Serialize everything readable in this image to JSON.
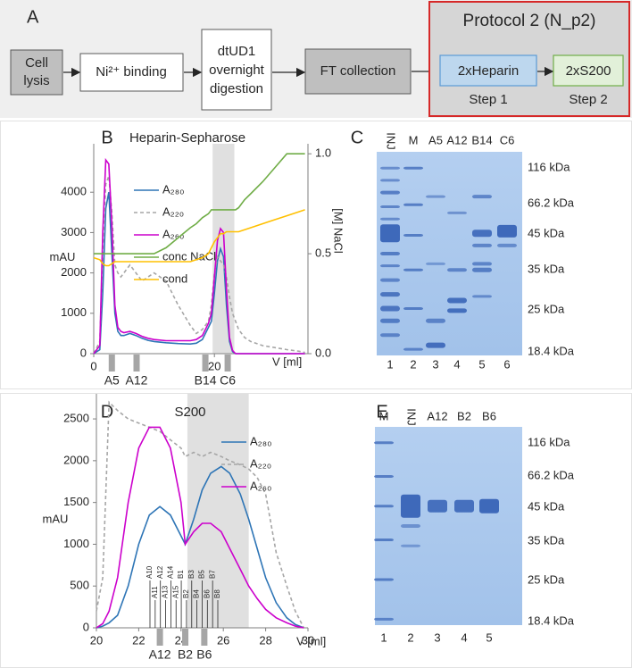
{
  "panel_a": {
    "label": "A",
    "steps": [
      [
        "Cell",
        "lysis"
      ],
      [
        "Ni²⁺ binding"
      ],
      [
        "dtUD1",
        "overnight",
        "digestion"
      ],
      [
        "FT collection"
      ]
    ],
    "protocol": {
      "title": "Protocol 2 (N_p2)",
      "steps": [
        {
          "name": "2xHeparin",
          "label": "Step 1"
        },
        {
          "name": "2xS200",
          "label": "Step 2"
        }
      ]
    }
  },
  "chart_data": [
    {
      "type": "line",
      "panel": "B",
      "title": "Heparin-Sepharose",
      "y_label": "mAU",
      "y2_label": "[M] NaCl",
      "x_label": "V [ml]",
      "x": [
        0,
        1,
        1.5,
        2,
        2.5,
        3,
        3.5,
        4,
        4.5,
        5,
        6,
        7,
        8,
        9,
        10,
        12,
        14,
        16,
        17,
        18,
        19,
        19.5,
        20,
        20.5,
        21,
        21.5,
        22,
        22.5,
        23,
        23.5,
        24,
        25,
        26,
        28,
        30,
        32,
        34,
        35
      ],
      "series": [
        {
          "name": "A₂₈₀",
          "color": "#2e75b6",
          "values": [
            0,
            100,
            1500,
            3600,
            4000,
            2500,
            1000,
            550,
            450,
            450,
            500,
            450,
            380,
            330,
            300,
            270,
            250,
            240,
            260,
            350,
            650,
            800,
            1500,
            2300,
            2600,
            2400,
            1200,
            300,
            50,
            0,
            0,
            0,
            0,
            0,
            0,
            0,
            0,
            0
          ]
        },
        {
          "name": "A₂₂₀",
          "color": "#a6a6a6",
          "dashed": true,
          "values": [
            0,
            300,
            2500,
            4200,
            4400,
            3500,
            2200,
            2000,
            1900,
            2000,
            2200,
            2000,
            1800,
            1900,
            2000,
            1800,
            1200,
            700,
            500,
            600,
            800,
            1200,
            2000,
            2400,
            2300,
            2200,
            1900,
            1400,
            1000,
            800,
            600,
            400,
            300,
            200,
            150,
            100,
            60,
            30
          ]
        },
        {
          "name": "A₂₆₀",
          "color": "#cc00cc",
          "values": [
            0,
            200,
            3000,
            4800,
            4700,
            3200,
            1200,
            650,
            550,
            520,
            550,
            500,
            430,
            380,
            350,
            320,
            320,
            320,
            350,
            450,
            750,
            1000,
            1900,
            2800,
            3100,
            3000,
            1600,
            400,
            80,
            0,
            0,
            0,
            0,
            0,
            0,
            0,
            0,
            0
          ]
        },
        {
          "name": "conc NaCl",
          "color": "#70ad47",
          "axis": "y2",
          "values": [
            0.5,
            0.5,
            0.5,
            0.5,
            0.5,
            0.5,
            0.5,
            0.5,
            0.5,
            0.5,
            0.5,
            0.5,
            0.5,
            0.5,
            0.5,
            0.53,
            0.58,
            0.63,
            0.65,
            0.68,
            0.7,
            0.72,
            0.72,
            0.72,
            0.72,
            0.72,
            0.72,
            0.72,
            0.72,
            0.72,
            0.73,
            0.77,
            0.8,
            0.86,
            0.93,
            1,
            1,
            1
          ]
        },
        {
          "name": "cond",
          "color": "#ffc000",
          "axis": "y2",
          "values": [
            0.48,
            0.47,
            0.45,
            0.44,
            0.44,
            0.45,
            0.46,
            0.46,
            0.46,
            0.46,
            0.46,
            0.46,
            0.46,
            0.46,
            0.46,
            0.46,
            0.46,
            0.46,
            0.47,
            0.48,
            0.5,
            0.53,
            0.56,
            0.58,
            0.6,
            0.6,
            0.61,
            0.61,
            0.61,
            0.61,
            0.61,
            0.62,
            0.63,
            0.65,
            0.67,
            0.69,
            0.71,
            0.72
          ]
        }
      ],
      "xlim": [
        0,
        35.5
      ],
      "xticks": [
        0,
        20
      ],
      "ylim": [
        0,
        5200
      ],
      "yticks": [
        0,
        1000,
        2000,
        3000,
        4000
      ],
      "y2lim": [
        0,
        1.05
      ],
      "y2ticks": [
        {
          "value": 0,
          "label": "0.0"
        },
        0.5,
        {
          "value": 1,
          "label": "1.0"
        }
      ],
      "shaded": [
        19.7,
        23.3
      ],
      "fractions": [
        {
          "label": "A5",
          "x": 3
        },
        {
          "label": "A12",
          "x": 7.1
        },
        {
          "label": "B14",
          "x": 18.5
        },
        {
          "label": "C6",
          "x": 22.2
        }
      ]
    },
    {
      "type": "line",
      "panel": "D",
      "title": "S200",
      "y_label": "mAU",
      "x_label": "V [ml]",
      "x": [
        20,
        20.3,
        20.6,
        21,
        21.5,
        22,
        22.5,
        23,
        23.5,
        24,
        24.2,
        24.6,
        25,
        25.4,
        25.9,
        26.3,
        26.8,
        27.2,
        27.6,
        28,
        28.5,
        29,
        29.4,
        29.8
      ],
      "series": [
        {
          "name": "A₂₈₀",
          "color": "#2e75b6",
          "values": [
            0,
            20,
            60,
            150,
            500,
            1000,
            1350,
            1450,
            1350,
            1100,
            1000,
            1300,
            1650,
            1850,
            1930,
            1850,
            1600,
            1300,
            950,
            600,
            300,
            120,
            40,
            0
          ]
        },
        {
          "name": "A₂₂₀",
          "color": "#a6a6a6",
          "dashed": true,
          "values": [
            200,
            600,
            2700,
            2600,
            2500,
            2450,
            2400,
            2350,
            2250,
            2150,
            2050,
            2100,
            2050,
            2100,
            2050,
            2000,
            1950,
            1900,
            1800,
            1600,
            900,
            500,
            200,
            0
          ]
        },
        {
          "name": "A₂₆₀",
          "color": "#cc00cc",
          "values": [
            0,
            50,
            200,
            600,
            1500,
            2150,
            2400,
            2400,
            2150,
            1500,
            1000,
            1150,
            1250,
            1250,
            1150,
            950,
            700,
            500,
            350,
            220,
            120,
            60,
            20,
            0
          ]
        }
      ],
      "xlim": [
        20,
        30
      ],
      "xticks": [
        20,
        22,
        24,
        26,
        28,
        30
      ],
      "ylim": [
        0,
        2800
      ],
      "yticks": [
        0,
        500,
        1000,
        1500,
        2000,
        2500
      ],
      "shaded": [
        24.3,
        27.2
      ],
      "fractions": [
        {
          "label": "A12",
          "x": 23
        },
        {
          "label": "B2",
          "x": 24.2
        },
        {
          "label": "B6",
          "x": 25.1
        }
      ],
      "fraction_ticks": [
        "A10",
        "A11",
        "A12",
        "A13",
        "A14",
        "A15",
        "B1",
        "B2",
        "B3",
        "B4",
        "B5",
        "B6",
        "B7",
        "B8"
      ]
    }
  ],
  "gels": [
    {
      "panel": "C",
      "lanes": [
        "INJ",
        "M",
        "A5",
        "A12",
        "B14",
        "C6"
      ],
      "lane_numbers": [
        "1",
        "2",
        "3",
        "4",
        "5",
        "6"
      ],
      "markers": [
        "116 kDa",
        "66.2 kDa",
        "45 kDa",
        "35 kDa",
        "25 kDa",
        "18.4 kDa"
      ]
    },
    {
      "panel": "E",
      "lanes": [
        "M",
        "INJ",
        "A12",
        "B2",
        "B6"
      ],
      "lane_numbers": [
        "1",
        "2",
        "3",
        "4",
        "5"
      ],
      "markers": [
        "116 kDa",
        "66.2 kDa",
        "45 kDa",
        "35 kDa",
        "25 kDa",
        "18.4 kDa"
      ]
    }
  ]
}
